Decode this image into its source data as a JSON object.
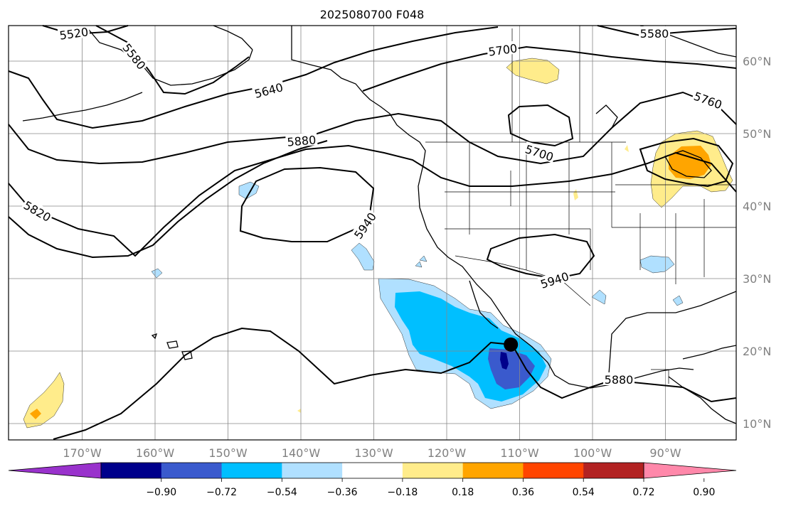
{
  "title": "2025080700 F048",
  "map": {
    "lon_labels": [
      "170°W",
      "160°W",
      "150°W",
      "140°W",
      "130°W",
      "120°W",
      "110°W",
      "100°W",
      "90°W"
    ],
    "lat_labels": [
      "60°N",
      "50°N",
      "40°N",
      "30°N",
      "20°N",
      "10°N"
    ],
    "contour_labels": [
      {
        "text": "5520"
      },
      {
        "text": "5580"
      },
      {
        "text": "5580"
      },
      {
        "text": "5640"
      },
      {
        "text": "5700"
      },
      {
        "text": "5700"
      },
      {
        "text": "5760"
      },
      {
        "text": "5820"
      },
      {
        "text": "5880"
      },
      {
        "text": "5880"
      },
      {
        "text": "5940"
      },
      {
        "text": "5940"
      }
    ],
    "marker": {
      "name": "storm-center",
      "lon": -111.2,
      "lat": 20.9
    }
  },
  "colorbar": {
    "ticks": [
      "−0.90",
      "−0.72",
      "−0.54",
      "−0.36",
      "−0.18",
      "0.18",
      "0.36",
      "0.54",
      "0.72",
      "0.90"
    ],
    "colors": [
      "#9932CC",
      "#00008B",
      "#3A5ACD",
      "#00BFFF",
      "#B0E0FF",
      "#FFFFFF",
      "#FFEC8B",
      "#FFA500",
      "#FF4500",
      "#B22222",
      "#FF88AA"
    ]
  },
  "colors": {
    "neg_strong": "#3A5ACD",
    "neg_mid": "#00BFFF",
    "neg_weak": "#B0E0FF",
    "neg_deep": "#00008B",
    "pos_weak": "#FFEC8B",
    "pos_mid": "#FFA500"
  }
}
